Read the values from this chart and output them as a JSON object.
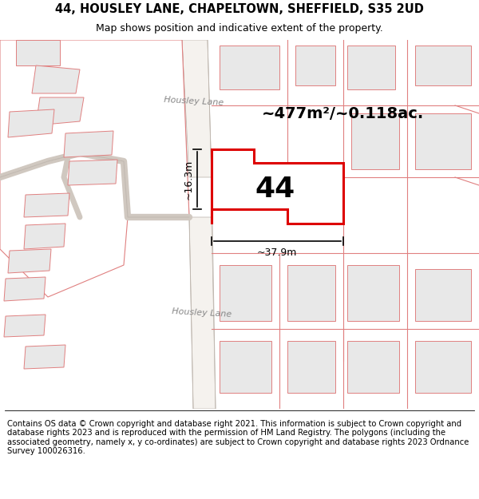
{
  "title_line1": "44, HOUSLEY LANE, CHAPELTOWN, SHEFFIELD, S35 2UD",
  "title_line2": "Map shows position and indicative extent of the property.",
  "footer_text": "Contains OS data © Crown copyright and database right 2021. This information is subject to Crown copyright and database rights 2023 and is reproduced with the permission of HM Land Registry. The polygons (including the associated geometry, namely x, y co-ordinates) are subject to Crown copyright and database rights 2023 Ordnance Survey 100026316.",
  "area_text": "~477m²/~0.118ac.",
  "label_44": "44",
  "dim_width": "~37.9m",
  "dim_height": "~16.3m",
  "road_label_top": "Housley Lane",
  "road_label_bottom": "Housley Lane",
  "map_bg": "#ffffff",
  "highlight_color": "#dd0000",
  "building_fill": "#e8e8e8",
  "building_outline": "#e08080",
  "road_fill": "#f0ece8",
  "road_outline": "#c8c8c8",
  "title_fontsize": 10.5,
  "footer_fontsize": 7.2
}
